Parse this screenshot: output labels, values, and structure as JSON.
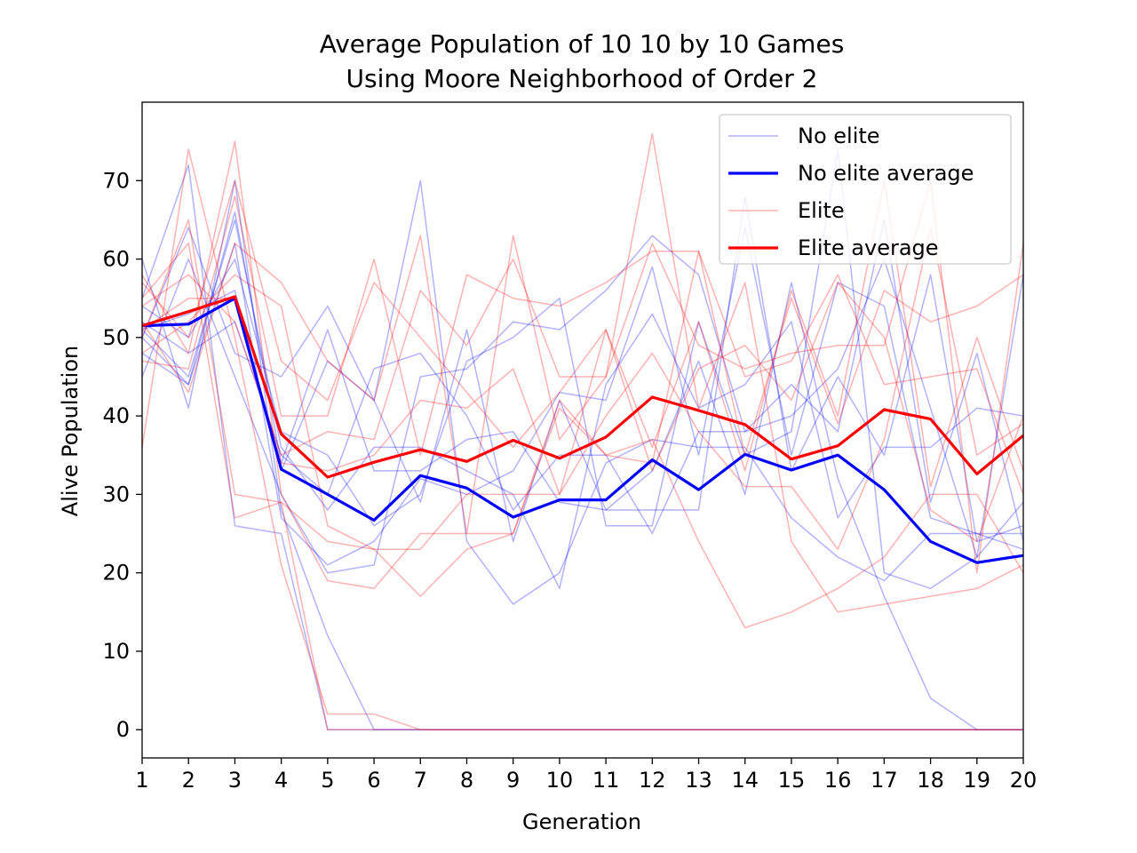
{
  "chart_data": {
    "type": "line",
    "title": "Average Population of 10 10 by 10 Games",
    "subtitle": "Using Moore Neighborhood of Order 2",
    "xlabel": "Generation",
    "ylabel": "Alive Population",
    "x": [
      1,
      2,
      3,
      4,
      5,
      6,
      7,
      8,
      9,
      10,
      11,
      12,
      13,
      14,
      15,
      16,
      17,
      18,
      19,
      20
    ],
    "xlim": [
      1,
      20
    ],
    "ylim": [
      -3.6,
      80
    ],
    "xticks": [
      "1",
      "2",
      "3",
      "4",
      "5",
      "6",
      "7",
      "8",
      "9",
      "10",
      "11",
      "12",
      "13",
      "14",
      "15",
      "16",
      "17",
      "18",
      "19",
      "20"
    ],
    "yticks": [
      0,
      10,
      20,
      30,
      40,
      50,
      60,
      70
    ],
    "grid": false,
    "legend_position": "top-right",
    "legend": [
      {
        "label": "No elite",
        "color": "#0000ff",
        "style": "thin"
      },
      {
        "label": "No elite average",
        "color": "#0000ff",
        "style": "thick"
      },
      {
        "label": "Elite",
        "color": "#ff0000",
        "style": "thin"
      },
      {
        "label": "Elite average",
        "color": "#ff0000",
        "style": "thick"
      }
    ],
    "no_elite_runs": [
      [
        60,
        41,
        70,
        28,
        12,
        0,
        0,
        0,
        0,
        0,
        0,
        0,
        0,
        0,
        0,
        0,
        0,
        0,
        0,
        0
      ],
      [
        55,
        72,
        26,
        25,
        0,
        0,
        0,
        0,
        0,
        0,
        0,
        0,
        0,
        0,
        0,
        0,
        0,
        0,
        0,
        0
      ],
      [
        45,
        60,
        45,
        30,
        20,
        21,
        45,
        46,
        52,
        51,
        56,
        63,
        58,
        38,
        44,
        38,
        65,
        29,
        48,
        24
      ],
      [
        50,
        64,
        48,
        45,
        54,
        42,
        70,
        24,
        16,
        20,
        34,
        37,
        36,
        36,
        27,
        22,
        19,
        25,
        25,
        25
      ],
      [
        48,
        44,
        62,
        27,
        21,
        24,
        32,
        30,
        33,
        43,
        42,
        59,
        35,
        64,
        35,
        57,
        54,
        27,
        25,
        23
      ],
      [
        51,
        45,
        65,
        36,
        28,
        36,
        36,
        33,
        30,
        18,
        44,
        53,
        41,
        44,
        52,
        27,
        36,
        36,
        41,
        40
      ],
      [
        54,
        50,
        60,
        38,
        35,
        26,
        30,
        47,
        50,
        55,
        26,
        26,
        52,
        35,
        38,
        74,
        20,
        18,
        22,
        58
      ],
      [
        51,
        53,
        56,
        33,
        47,
        42,
        29,
        51,
        24,
        42,
        28,
        28,
        28,
        68,
        33,
        45,
        35,
        58,
        24,
        26
      ],
      [
        52,
        48,
        52,
        35,
        30,
        46,
        48,
        40,
        28,
        35,
        35,
        25,
        38,
        38,
        40,
        46,
        60,
        41,
        22,
        29
      ],
      [
        50,
        44,
        66,
        34,
        51,
        33,
        33,
        37,
        38,
        29,
        28,
        33,
        47,
        30,
        57,
        32,
        17,
        4,
        0,
        0
      ]
    ],
    "no_elite_average": [
      51.5,
      51.7,
      55.0,
      33.2,
      30.0,
      26.7,
      32.4,
      30.8,
      27.1,
      29.3,
      29.3,
      34.4,
      30.6,
      35.1,
      33.1,
      35.0,
      30.6,
      24.0,
      21.3,
      22.2
    ],
    "elite_runs": [
      [
        36,
        74,
        50,
        21,
        2,
        2,
        0,
        0,
        0,
        0,
        0,
        0,
        0,
        0,
        0,
        0,
        0,
        0,
        0,
        0
      ],
      [
        58,
        48,
        75,
        30,
        19,
        18,
        25,
        25,
        25,
        42,
        35,
        37,
        24,
        13,
        15,
        18,
        22,
        30,
        30,
        20
      ],
      [
        50,
        65,
        30,
        29,
        0,
        0,
        0,
        0,
        0,
        0,
        0,
        0,
        0,
        0,
        0,
        0,
        0,
        0,
        0,
        0
      ],
      [
        52,
        43,
        62,
        57,
        47,
        42,
        63,
        25,
        63,
        37,
        45,
        76,
        41,
        57,
        24,
        15,
        16,
        17,
        18,
        21
      ],
      [
        55,
        62,
        27,
        29,
        24,
        23,
        23,
        30,
        30,
        30,
        40,
        48,
        38,
        31,
        31,
        23,
        37,
        64,
        35,
        39
      ],
      [
        48,
        52,
        58,
        54,
        26,
        23,
        17,
        23,
        25,
        41,
        35,
        34,
        61,
        35,
        55,
        39,
        56,
        52,
        54,
        58
      ],
      [
        47,
        46,
        68,
        40,
        40,
        60,
        35,
        58,
        55,
        54,
        57,
        61,
        61,
        45,
        47,
        58,
        44,
        45,
        46,
        30
      ],
      [
        54,
        58,
        52,
        35,
        38,
        37,
        56,
        49,
        60,
        45,
        45,
        62,
        49,
        46,
        48,
        49,
        49,
        70,
        20,
        62
      ],
      [
        51,
        55,
        55,
        34,
        33,
        35,
        42,
        41,
        46,
        30,
        51,
        36,
        52,
        33,
        56,
        40,
        70,
        31,
        50,
        33
      ],
      [
        57,
        50,
        70,
        47,
        42,
        57,
        50,
        43,
        36,
        43,
        51,
        33,
        46,
        49,
        42,
        57,
        50,
        28,
        24,
        40
      ]
    ],
    "elite_average": [
      51.5,
      53.3,
      55.2,
      37.7,
      32.2,
      34.1,
      35.7,
      34.2,
      36.9,
      34.6,
      37.3,
      42.4,
      40.7,
      38.9,
      34.5,
      36.2,
      40.8,
      39.6,
      32.6,
      37.5
    ],
    "colors": {
      "no_elite": "#0000ff",
      "elite": "#ff0000"
    }
  }
}
